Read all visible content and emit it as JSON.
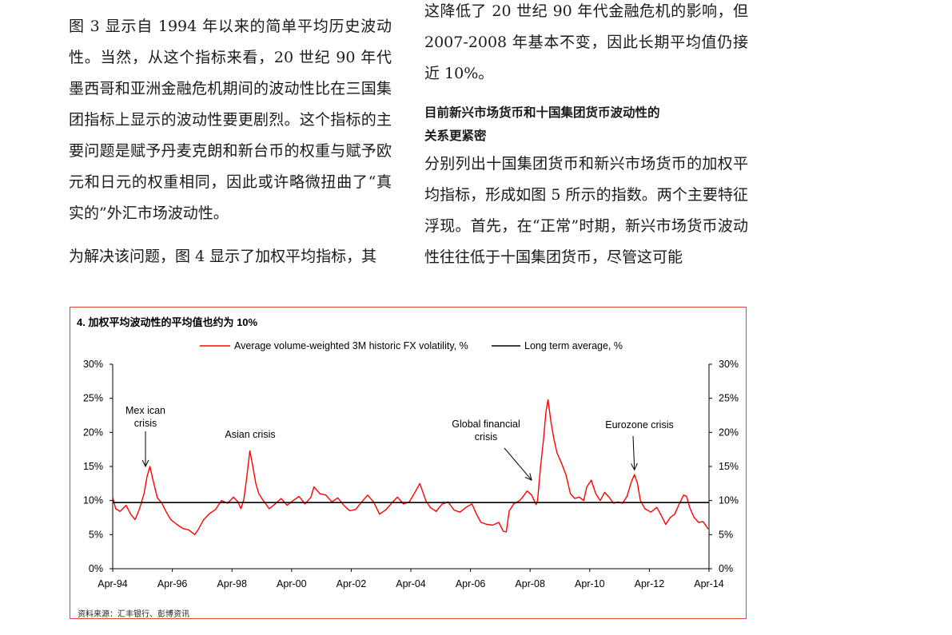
{
  "text": {
    "left_p1": "图 3 显示自 1994 年以来的简单平均历史波动性。当然，从这个指标来看，20 世纪 90 年代墨西哥和亚洲金融危机期间的波动性比在三国集团指标上显示的波动性要更剧烈。这个指标的主要问题是赋予丹麦克朗和新台币的权重与赋予欧元和日元的权重相同，因此或许略微扭曲了“真实的”外汇市场波动性。",
    "left_p2": "为解决该问题，图 4 显示了加权平均指标，其",
    "right_p1": "这降低了 20 世纪 90 年代金融危机的影响，但 2007-2008 年基本不变，因此长期平均值仍接近 10%。",
    "right_heading_line1": "目前新兴市场货币和十国集团货币波动性的",
    "right_heading_line2": "关系更紧密",
    "right_p2": "分别列出十国集团货币和新兴市场货币的加权平均指标，形成如图 5 所示的指数。两个主要特征浮现。首先，在“正常”时期，新兴市场货币波动性往往低于十国集团货币，尽管这可能"
  },
  "figure": {
    "title": "4. 加权平均波动性的平均值也约为 10%",
    "source": "资料来源：汇丰银行、彭博资讯",
    "border_color": "#e0453a"
  },
  "chart_data": {
    "type": "line",
    "title": "4. 加权平均波动性的平均值也约为 10%",
    "x_ticks": [
      "Apr-94",
      "Apr-96",
      "Apr-98",
      "Apr-00",
      "Apr-02",
      "Apr-04",
      "Apr-06",
      "Apr-08",
      "Apr-10",
      "Apr-12",
      "Apr-14"
    ],
    "x_range": [
      1994.25,
      2014.25
    ],
    "y_ticks": [
      "0%",
      "5%",
      "10%",
      "15%",
      "20%",
      "25%",
      "30%"
    ],
    "ylim": [
      0,
      30
    ],
    "y_axes": "left-and-right",
    "legend_placement": "top",
    "series": [
      {
        "name": "Average volume-weighted 3M historic FX volatility, %",
        "color": "#ff0000",
        "points": [
          [
            1994.25,
            10.5
          ],
          [
            1994.35,
            8.8
          ],
          [
            1994.5,
            8.4
          ],
          [
            1994.7,
            9.3
          ],
          [
            1994.85,
            8.0
          ],
          [
            1995.0,
            7.2
          ],
          [
            1995.15,
            8.8
          ],
          [
            1995.3,
            11.0
          ],
          [
            1995.4,
            13.5
          ],
          [
            1995.5,
            15.0
          ],
          [
            1995.6,
            13.0
          ],
          [
            1995.75,
            10.4
          ],
          [
            1995.9,
            9.6
          ],
          [
            1996.05,
            8.3
          ],
          [
            1996.2,
            7.2
          ],
          [
            1996.4,
            6.5
          ],
          [
            1996.6,
            5.9
          ],
          [
            1996.8,
            5.7
          ],
          [
            1997.0,
            5.0
          ],
          [
            1997.1,
            5.6
          ],
          [
            1997.3,
            7.2
          ],
          [
            1997.5,
            8.1
          ],
          [
            1997.7,
            8.7
          ],
          [
            1997.9,
            10.0
          ],
          [
            1998.1,
            9.6
          ],
          [
            1998.3,
            10.5
          ],
          [
            1998.45,
            9.8
          ],
          [
            1998.55,
            8.8
          ],
          [
            1998.65,
            10.2
          ],
          [
            1998.75,
            13.5
          ],
          [
            1998.85,
            17.3
          ],
          [
            1998.95,
            15.0
          ],
          [
            1999.05,
            12.5
          ],
          [
            1999.15,
            11.0
          ],
          [
            1999.3,
            10.0
          ],
          [
            1999.5,
            8.8
          ],
          [
            1999.7,
            9.5
          ],
          [
            1999.9,
            10.3
          ],
          [
            2000.1,
            9.3
          ],
          [
            2000.3,
            10.0
          ],
          [
            2000.5,
            10.6
          ],
          [
            2000.7,
            9.5
          ],
          [
            2000.9,
            10.5
          ],
          [
            2001.0,
            12.0
          ],
          [
            2001.2,
            11.0
          ],
          [
            2001.4,
            10.8
          ],
          [
            2001.6,
            9.8
          ],
          [
            2001.8,
            10.4
          ],
          [
            2002.0,
            9.3
          ],
          [
            2002.2,
            8.5
          ],
          [
            2002.4,
            8.7
          ],
          [
            2002.6,
            9.8
          ],
          [
            2002.8,
            10.8
          ],
          [
            2003.0,
            9.8
          ],
          [
            2003.2,
            8.0
          ],
          [
            2003.4,
            8.6
          ],
          [
            2003.6,
            9.6
          ],
          [
            2003.8,
            10.5
          ],
          [
            2004.0,
            9.5
          ],
          [
            2004.2,
            9.8
          ],
          [
            2004.4,
            11.3
          ],
          [
            2004.55,
            12.5
          ],
          [
            2004.75,
            10.0
          ],
          [
            2004.9,
            9.0
          ],
          [
            2005.1,
            8.4
          ],
          [
            2005.3,
            9.5
          ],
          [
            2005.5,
            9.8
          ],
          [
            2005.7,
            8.6
          ],
          [
            2005.9,
            8.3
          ],
          [
            2006.1,
            9.0
          ],
          [
            2006.3,
            9.5
          ],
          [
            2006.45,
            8.0
          ],
          [
            2006.6,
            6.8
          ],
          [
            2006.8,
            6.5
          ],
          [
            2007.0,
            6.4
          ],
          [
            2007.2,
            6.8
          ],
          [
            2007.35,
            5.5
          ],
          [
            2007.45,
            5.4
          ],
          [
            2007.55,
            8.5
          ],
          [
            2007.7,
            9.5
          ],
          [
            2007.9,
            10.0
          ],
          [
            2008.0,
            10.5
          ],
          [
            2008.15,
            11.4
          ],
          [
            2008.3,
            10.8
          ],
          [
            2008.45,
            9.4
          ],
          [
            2008.5,
            10.0
          ],
          [
            2008.6,
            15.0
          ],
          [
            2008.7,
            19.0
          ],
          [
            2008.78,
            23.0
          ],
          [
            2008.85,
            24.8
          ],
          [
            2008.95,
            21.5
          ],
          [
            2009.05,
            19.0
          ],
          [
            2009.15,
            17.0
          ],
          [
            2009.3,
            15.5
          ],
          [
            2009.45,
            13.8
          ],
          [
            2009.6,
            11.0
          ],
          [
            2009.75,
            10.3
          ],
          [
            2009.9,
            10.5
          ],
          [
            2010.05,
            10.0
          ],
          [
            2010.15,
            12.0
          ],
          [
            2010.3,
            13.0
          ],
          [
            2010.45,
            11.0
          ],
          [
            2010.6,
            10.0
          ],
          [
            2010.75,
            11.2
          ],
          [
            2010.9,
            10.5
          ],
          [
            2011.05,
            9.6
          ],
          [
            2011.2,
            9.8
          ],
          [
            2011.35,
            9.6
          ],
          [
            2011.5,
            10.6
          ],
          [
            2011.65,
            12.8
          ],
          [
            2011.75,
            13.8
          ],
          [
            2011.85,
            12.5
          ],
          [
            2011.95,
            10.0
          ],
          [
            2012.1,
            8.8
          ],
          [
            2012.3,
            8.3
          ],
          [
            2012.5,
            9.0
          ],
          [
            2012.65,
            7.8
          ],
          [
            2012.8,
            6.5
          ],
          [
            2012.95,
            7.5
          ],
          [
            2013.1,
            8.0
          ],
          [
            2013.25,
            9.5
          ],
          [
            2013.4,
            10.8
          ],
          [
            2013.5,
            10.6
          ],
          [
            2013.6,
            9.0
          ],
          [
            2013.75,
            7.5
          ],
          [
            2013.9,
            6.8
          ],
          [
            2014.05,
            6.9
          ],
          [
            2014.15,
            6.3
          ],
          [
            2014.22,
            5.8
          ]
        ]
      },
      {
        "name": "Long term average, %",
        "color": "#000000",
        "points": [
          [
            1994.25,
            9.7
          ],
          [
            2014.25,
            9.7
          ]
        ]
      }
    ],
    "annotations": [
      {
        "lines": [
          "Mex ican",
          "crisis"
        ],
        "arrow_to": [
          1995.35,
          15.0
        ]
      },
      {
        "lines": [
          "Asian crisis"
        ],
        "arrow_to": null
      },
      {
        "lines": [
          "Global  financial",
          "crisis"
        ],
        "arrow_to": [
          2008.3,
          13.0
        ]
      },
      {
        "lines": [
          "Eurozone crisis"
        ],
        "arrow_to": [
          2011.75,
          14.5
        ]
      }
    ]
  }
}
